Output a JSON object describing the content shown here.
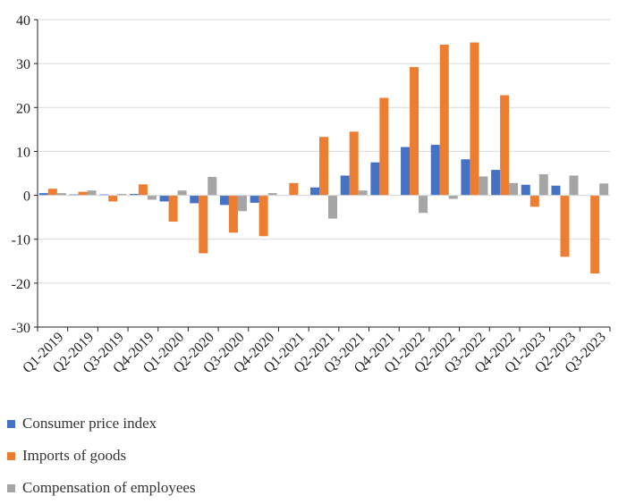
{
  "chart_data": {
    "type": "bar",
    "categories": [
      "Q1-2019",
      "Q2-2019",
      "Q3-2019",
      "Q4-2019",
      "Q1-2020",
      "Q2-2020",
      "Q3-2020",
      "Q4-2020",
      "Q1-2021",
      "Q2-2021",
      "Q3-2021",
      "Q4-2021",
      "Q1-2022",
      "Q2-2022",
      "Q3-2022",
      "Q4-2022",
      "Q1-2023",
      "Q2-2023",
      "Q3-2023"
    ],
    "series": [
      {
        "name": "Consumer price index",
        "color": "#4472C4",
        "values": [
          0.5,
          0.2,
          0.2,
          0.3,
          -1.4,
          -1.8,
          -2.2,
          -1.7,
          0.0,
          1.8,
          4.5,
          7.5,
          11.0,
          11.5,
          8.2,
          5.8,
          2.4,
          2.2,
          0.0
        ]
      },
      {
        "name": "Imports of goods",
        "color": "#ED7D31",
        "values": [
          1.5,
          0.8,
          -1.4,
          2.5,
          -6.0,
          -13.2,
          -8.5,
          -9.3,
          2.8,
          13.3,
          14.5,
          22.2,
          29.2,
          34.3,
          34.8,
          22.8,
          -2.6,
          -14.0,
          -17.8
        ]
      },
      {
        "name": "Compensation of employees",
        "color": "#A5A5A5",
        "values": [
          0.5,
          1.1,
          0.3,
          -1.0,
          1.1,
          4.2,
          -3.6,
          0.5,
          0.0,
          -5.3,
          1.1,
          0.0,
          -4.0,
          -0.8,
          4.3,
          2.8,
          4.8,
          4.5,
          2.7
        ]
      }
    ],
    "ylim": [
      -30,
      40
    ],
    "yticks": [
      -30,
      -20,
      -10,
      0,
      10,
      20,
      30,
      40
    ],
    "ytick_labels": [
      "-30",
      "-20",
      "-10",
      "0",
      "10",
      "20",
      "30",
      "40"
    ],
    "grid": true,
    "legend_position": "bottom-left"
  }
}
